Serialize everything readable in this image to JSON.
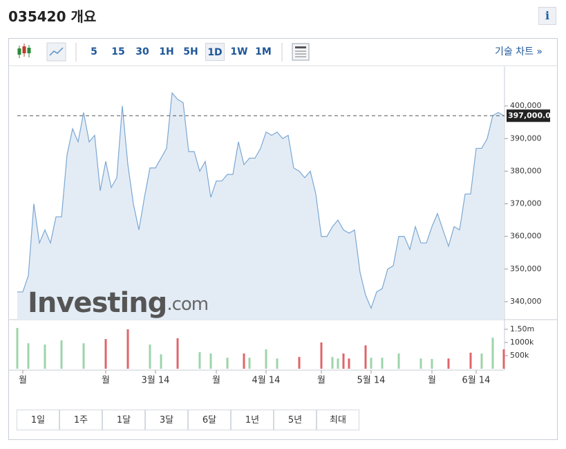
{
  "header": {
    "title": "035420 개요",
    "info_button": "i"
  },
  "toolbar": {
    "intervals": [
      "5",
      "15",
      "30",
      "1H",
      "5H",
      "1D",
      "1W",
      "1M"
    ],
    "selected": "1D",
    "technical_chart_link": "기술 차트 »"
  },
  "watermark": {
    "brand": "Investing",
    "suffix": ".com"
  },
  "ranges": [
    "1일",
    "1주",
    "1달",
    "3달",
    "6달",
    "1년",
    "5년",
    "최대"
  ],
  "chart_data": {
    "type": "area",
    "categories": [
      null,
      "월",
      null,
      null,
      null,
      null,
      null,
      null,
      null,
      null,
      null,
      null,
      null,
      null,
      null,
      null,
      "월",
      null,
      null,
      null,
      null,
      null,
      null,
      null,
      null,
      "3월 14",
      null,
      null,
      null,
      null,
      null,
      null,
      null,
      null,
      null,
      null,
      "월",
      null,
      null,
      null,
      null,
      null,
      null,
      null,
      null,
      "4월 14",
      null,
      null,
      null,
      null,
      null,
      null,
      null,
      null,
      null,
      "월",
      null,
      null,
      null,
      null,
      null,
      null,
      null,
      null,
      "5월 14",
      null,
      null,
      null,
      null,
      null,
      null,
      null,
      null,
      null,
      null,
      "월",
      null,
      null,
      null,
      null,
      null,
      null,
      null,
      "6월 14",
      null,
      null,
      null,
      null,
      null
    ],
    "series": [
      {
        "color": "#7ba7d3",
        "fill": "#e3ecf5",
        "values": [
          343000,
          343000,
          348000,
          370000,
          358000,
          362000,
          358000,
          366000,
          366000,
          385000,
          393000,
          389000,
          398000,
          389000,
          391000,
          374000,
          383000,
          375000,
          378000,
          400000,
          382000,
          370000,
          362000,
          372000,
          381000,
          381000,
          384000,
          387000,
          404000,
          402000,
          401000,
          386000,
          386000,
          380000,
          383000,
          372000,
          377000,
          377000,
          379000,
          379000,
          389000,
          382000,
          384000,
          384000,
          387000,
          392000,
          391000,
          392000,
          390000,
          391000,
          381000,
          380000,
          378000,
          380000,
          373000,
          360000,
          360000,
          363000,
          365000,
          362000,
          361000,
          362000,
          349000,
          342000,
          338000,
          343000,
          344000,
          350000,
          351000,
          360000,
          360000,
          356000,
          363000,
          358000,
          358000,
          363000,
          367000,
          362000,
          357000,
          363000,
          362000,
          373000,
          373000,
          387000,
          387000,
          390000,
          397000,
          398000,
          397000
        ]
      },
      {
        "type": "bar",
        "axis": "y2",
        "values": [
          1550000,
          null,
          970000,
          null,
          null,
          920000,
          null,
          null,
          1080000,
          null,
          null,
          null,
          970000,
          null,
          null,
          null,
          1130000,
          null,
          null,
          null,
          1500000,
          null,
          null,
          null,
          920000,
          null,
          550000,
          null,
          null,
          1160000,
          null,
          null,
          null,
          630000,
          null,
          580000,
          null,
          null,
          420000,
          null,
          null,
          580000,
          420000,
          null,
          null,
          740000,
          null,
          390000,
          null,
          null,
          null,
          450000,
          null,
          null,
          null,
          1000000,
          null,
          450000,
          390000,
          580000,
          390000,
          null,
          null,
          890000,
          420000,
          null,
          420000,
          null,
          null,
          580000,
          null,
          null,
          null,
          390000,
          null,
          370000,
          null,
          null,
          390000,
          null,
          null,
          null,
          610000,
          null,
          580000,
          null,
          1180000,
          null,
          740000
        ],
        "colors": [
          "#9dd4aa",
          null,
          "#9dd4aa",
          null,
          null,
          "#9dd4aa",
          null,
          null,
          "#9dd4aa",
          null,
          null,
          null,
          "#9dd4aa",
          null,
          null,
          null,
          "#e0646a",
          null,
          null,
          null,
          "#e0646a",
          null,
          null,
          null,
          "#9dd4aa",
          null,
          "#9dd4aa",
          null,
          null,
          "#e0646a",
          null,
          null,
          null,
          "#9dd4aa",
          null,
          "#9dd4aa",
          null,
          null,
          "#9dd4aa",
          null,
          null,
          "#e0646a",
          "#9dd4aa",
          null,
          null,
          "#9dd4aa",
          null,
          "#9dd4aa",
          null,
          null,
          null,
          "#e0646a",
          null,
          null,
          null,
          "#e0646a",
          null,
          "#9dd4aa",
          "#9dd4aa",
          "#e0646a",
          "#e0646a",
          null,
          null,
          "#e0646a",
          "#9dd4aa",
          null,
          "#9dd4aa",
          null,
          null,
          "#9dd4aa",
          null,
          null,
          null,
          "#9dd4aa",
          null,
          "#9dd4aa",
          null,
          null,
          "#e0646a",
          null,
          null,
          null,
          "#e0646a",
          null,
          "#9dd4aa",
          null,
          "#9dd4aa",
          null,
          "#e0646a"
        ]
      }
    ],
    "ylim": [
      334500,
      411900
    ],
    "yticks": [
      {
        "value": 340000,
        "label": "340,000"
      },
      {
        "value": 350000,
        "label": "350,000"
      },
      {
        "value": 360000,
        "label": "360,000"
      },
      {
        "value": 370000,
        "label": "370,000"
      },
      {
        "value": 380000,
        "label": "380,000"
      },
      {
        "value": 390000,
        "label": "390,000"
      },
      {
        "value": 400000,
        "label": "400,000"
      }
    ],
    "y2lim": [
      0,
      1763000
    ],
    "y2ticks": [
      {
        "value": 500000,
        "label": "500k"
      },
      {
        "value": 1000000,
        "label": "1000k"
      },
      {
        "value": 1500000,
        "label": "1.50m"
      }
    ],
    "last_price": {
      "value": 397000,
      "label": "397,000.00"
    }
  }
}
